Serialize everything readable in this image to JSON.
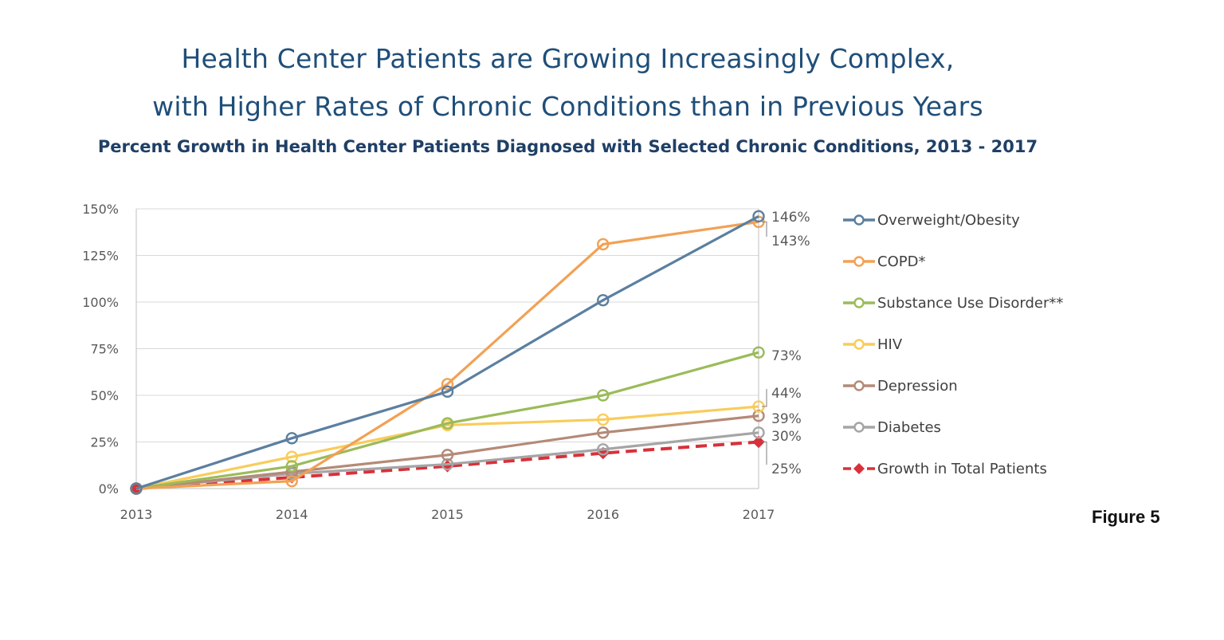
{
  "chart_data": {
    "type": "line",
    "title_lines": [
      "Health Center Patients are Growing Increasingly Complex,",
      "with Higher Rates of Chronic Conditions than in Previous Years"
    ],
    "subtitle": "Percent Growth in Health Center Patients Diagnosed with Selected Chronic Conditions, 2013 - 2017",
    "x": [
      "2013",
      "2014",
      "2015",
      "2016",
      "2017"
    ],
    "y_ticks": [
      "0%",
      "25%",
      "50%",
      "75%",
      "100%",
      "125%",
      "150%"
    ],
    "ylim": [
      0,
      150
    ],
    "grid": true,
    "legend_position": "right",
    "series": [
      {
        "name": "Overweight/Obesity",
        "color": "#5b7fa0",
        "values": [
          0,
          27,
          52,
          101,
          146
        ],
        "end_label": "146%",
        "marker": "circle"
      },
      {
        "name": "COPD*",
        "color": "#f2a154",
        "values": [
          0,
          4,
          56,
          131,
          143
        ],
        "end_label": "143%",
        "marker": "circle"
      },
      {
        "name": "Substance Use Disorder**",
        "color": "#9bbb59",
        "values": [
          0,
          12,
          35,
          50,
          73
        ],
        "end_label": "73%",
        "marker": "circle"
      },
      {
        "name": "HIV",
        "color": "#f9cc5a",
        "values": [
          0,
          17,
          34,
          37,
          44
        ],
        "end_label": "44%",
        "marker": "circle"
      },
      {
        "name": "Depression",
        "color": "#b48a77",
        "values": [
          0,
          9,
          18,
          30,
          39
        ],
        "end_label": "39%",
        "marker": "circle"
      },
      {
        "name": "Diabetes",
        "color": "#a5a5a5",
        "values": [
          0,
          8,
          13,
          21,
          30
        ],
        "end_label": "30%",
        "marker": "circle"
      },
      {
        "name": "Growth in Total Patients",
        "color": "#d9303a",
        "values": [
          0,
          6,
          12,
          19,
          25
        ],
        "end_label": "25%",
        "marker": "diamond",
        "dashed": true
      }
    ]
  },
  "figure_label": "Figure 5"
}
